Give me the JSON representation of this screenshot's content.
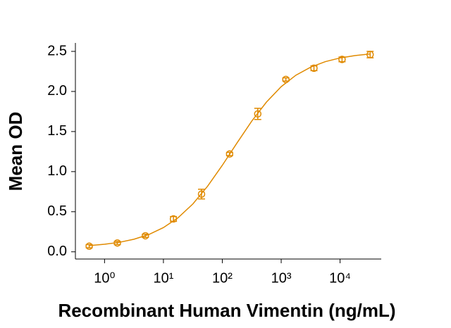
{
  "chart_data": {
    "type": "scatter",
    "x_label": "Recombinant Human Vimentin (ng/mL)",
    "y_label": "Mean OD",
    "log_x": true,
    "grid": false,
    "color": "#e08a00",
    "series": [
      {
        "color": "#e08a00",
        "x": [
          0.549,
          1.65,
          4.94,
          14.8,
          44.4,
          133,
          400,
          1200,
          3600,
          10800,
          32400
        ],
        "values": [
          0.07,
          0.11,
          0.2,
          0.41,
          0.72,
          1.22,
          1.72,
          2.15,
          2.29,
          2.4,
          2.46
        ],
        "errors": [
          0.02,
          0.02,
          0.02,
          0.03,
          0.06,
          0.02,
          0.07,
          0.02,
          0.03,
          0.03,
          0.04
        ]
      }
    ],
    "curve": {
      "color": "#e08a00",
      "x": [
        0.562,
        1,
        1.778,
        3.162,
        5.623,
        10,
        17.78,
        31.62,
        56.23,
        100,
        177.8,
        316.2,
        562.3,
        1000,
        1778,
        3162,
        5623,
        10000,
        17783,
        31623
      ],
      "values": [
        0.078,
        0.094,
        0.118,
        0.157,
        0.215,
        0.302,
        0.426,
        0.597,
        0.818,
        1.079,
        1.358,
        1.63,
        1.868,
        2.06,
        2.203,
        2.303,
        2.372,
        2.418,
        2.447,
        2.467
      ]
    },
    "xlim": [
      0.32,
      50000
    ],
    "ylim": [
      -0.09,
      2.6
    ],
    "xticks": [
      {
        "value": 1,
        "label": "10⁰"
      },
      {
        "value": 10,
        "label": "10¹"
      },
      {
        "value": 100,
        "label": "10²"
      },
      {
        "value": 1000,
        "label": "10³"
      },
      {
        "value": 10000,
        "label": "10⁴"
      }
    ],
    "yticks": [
      {
        "value": 0,
        "label": "0.0"
      },
      0.5,
      {
        "value": 1,
        "label": "1.0"
      },
      1.5,
      {
        "value": 2,
        "label": "2.0"
      },
      2.5
    ]
  }
}
